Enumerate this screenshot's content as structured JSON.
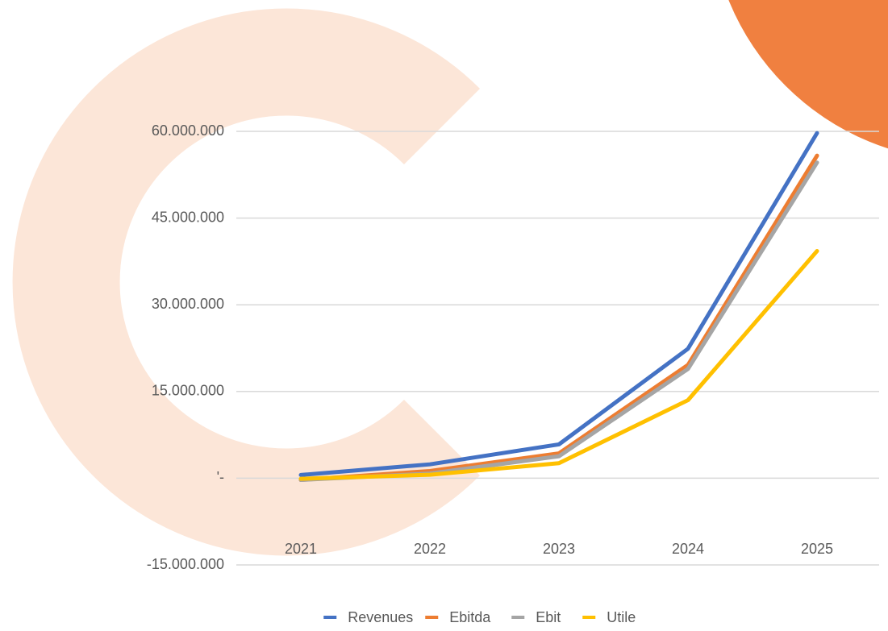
{
  "chart_data": {
    "type": "line",
    "categories": [
      "2021",
      "2022",
      "2023",
      "2024",
      "2025"
    ],
    "series": [
      {
        "name": "Revenues",
        "color": "#4472c4",
        "values": [
          560000,
          2400000,
          5850000,
          22400000,
          59700000
        ]
      },
      {
        "name": "Ebitda",
        "color": "#ed7d31",
        "values": [
          -300000,
          1250000,
          4300000,
          19600000,
          55800000
        ]
      },
      {
        "name": "Ebit",
        "color": "#a5a5a5",
        "values": [
          -300000,
          800000,
          3800000,
          18900000,
          54600000
        ]
      },
      {
        "name": "Utile",
        "color": "#ffc000",
        "values": [
          -100000,
          600000,
          2600000,
          13500000,
          39300000
        ]
      }
    ],
    "ylim": [
      -15000000,
      60000000
    ],
    "yticks": [
      {
        "value": -15000000,
        "label": "-15.000.000"
      },
      {
        "value": 0,
        "label": "'-"
      },
      {
        "value": 15000000,
        "label": "15.000.000"
      },
      {
        "value": 30000000,
        "label": "30.000.000"
      },
      {
        "value": 45000000,
        "label": "45.000.000"
      },
      {
        "value": 60000000,
        "label": "60.000.000"
      }
    ],
    "grid": true
  }
}
